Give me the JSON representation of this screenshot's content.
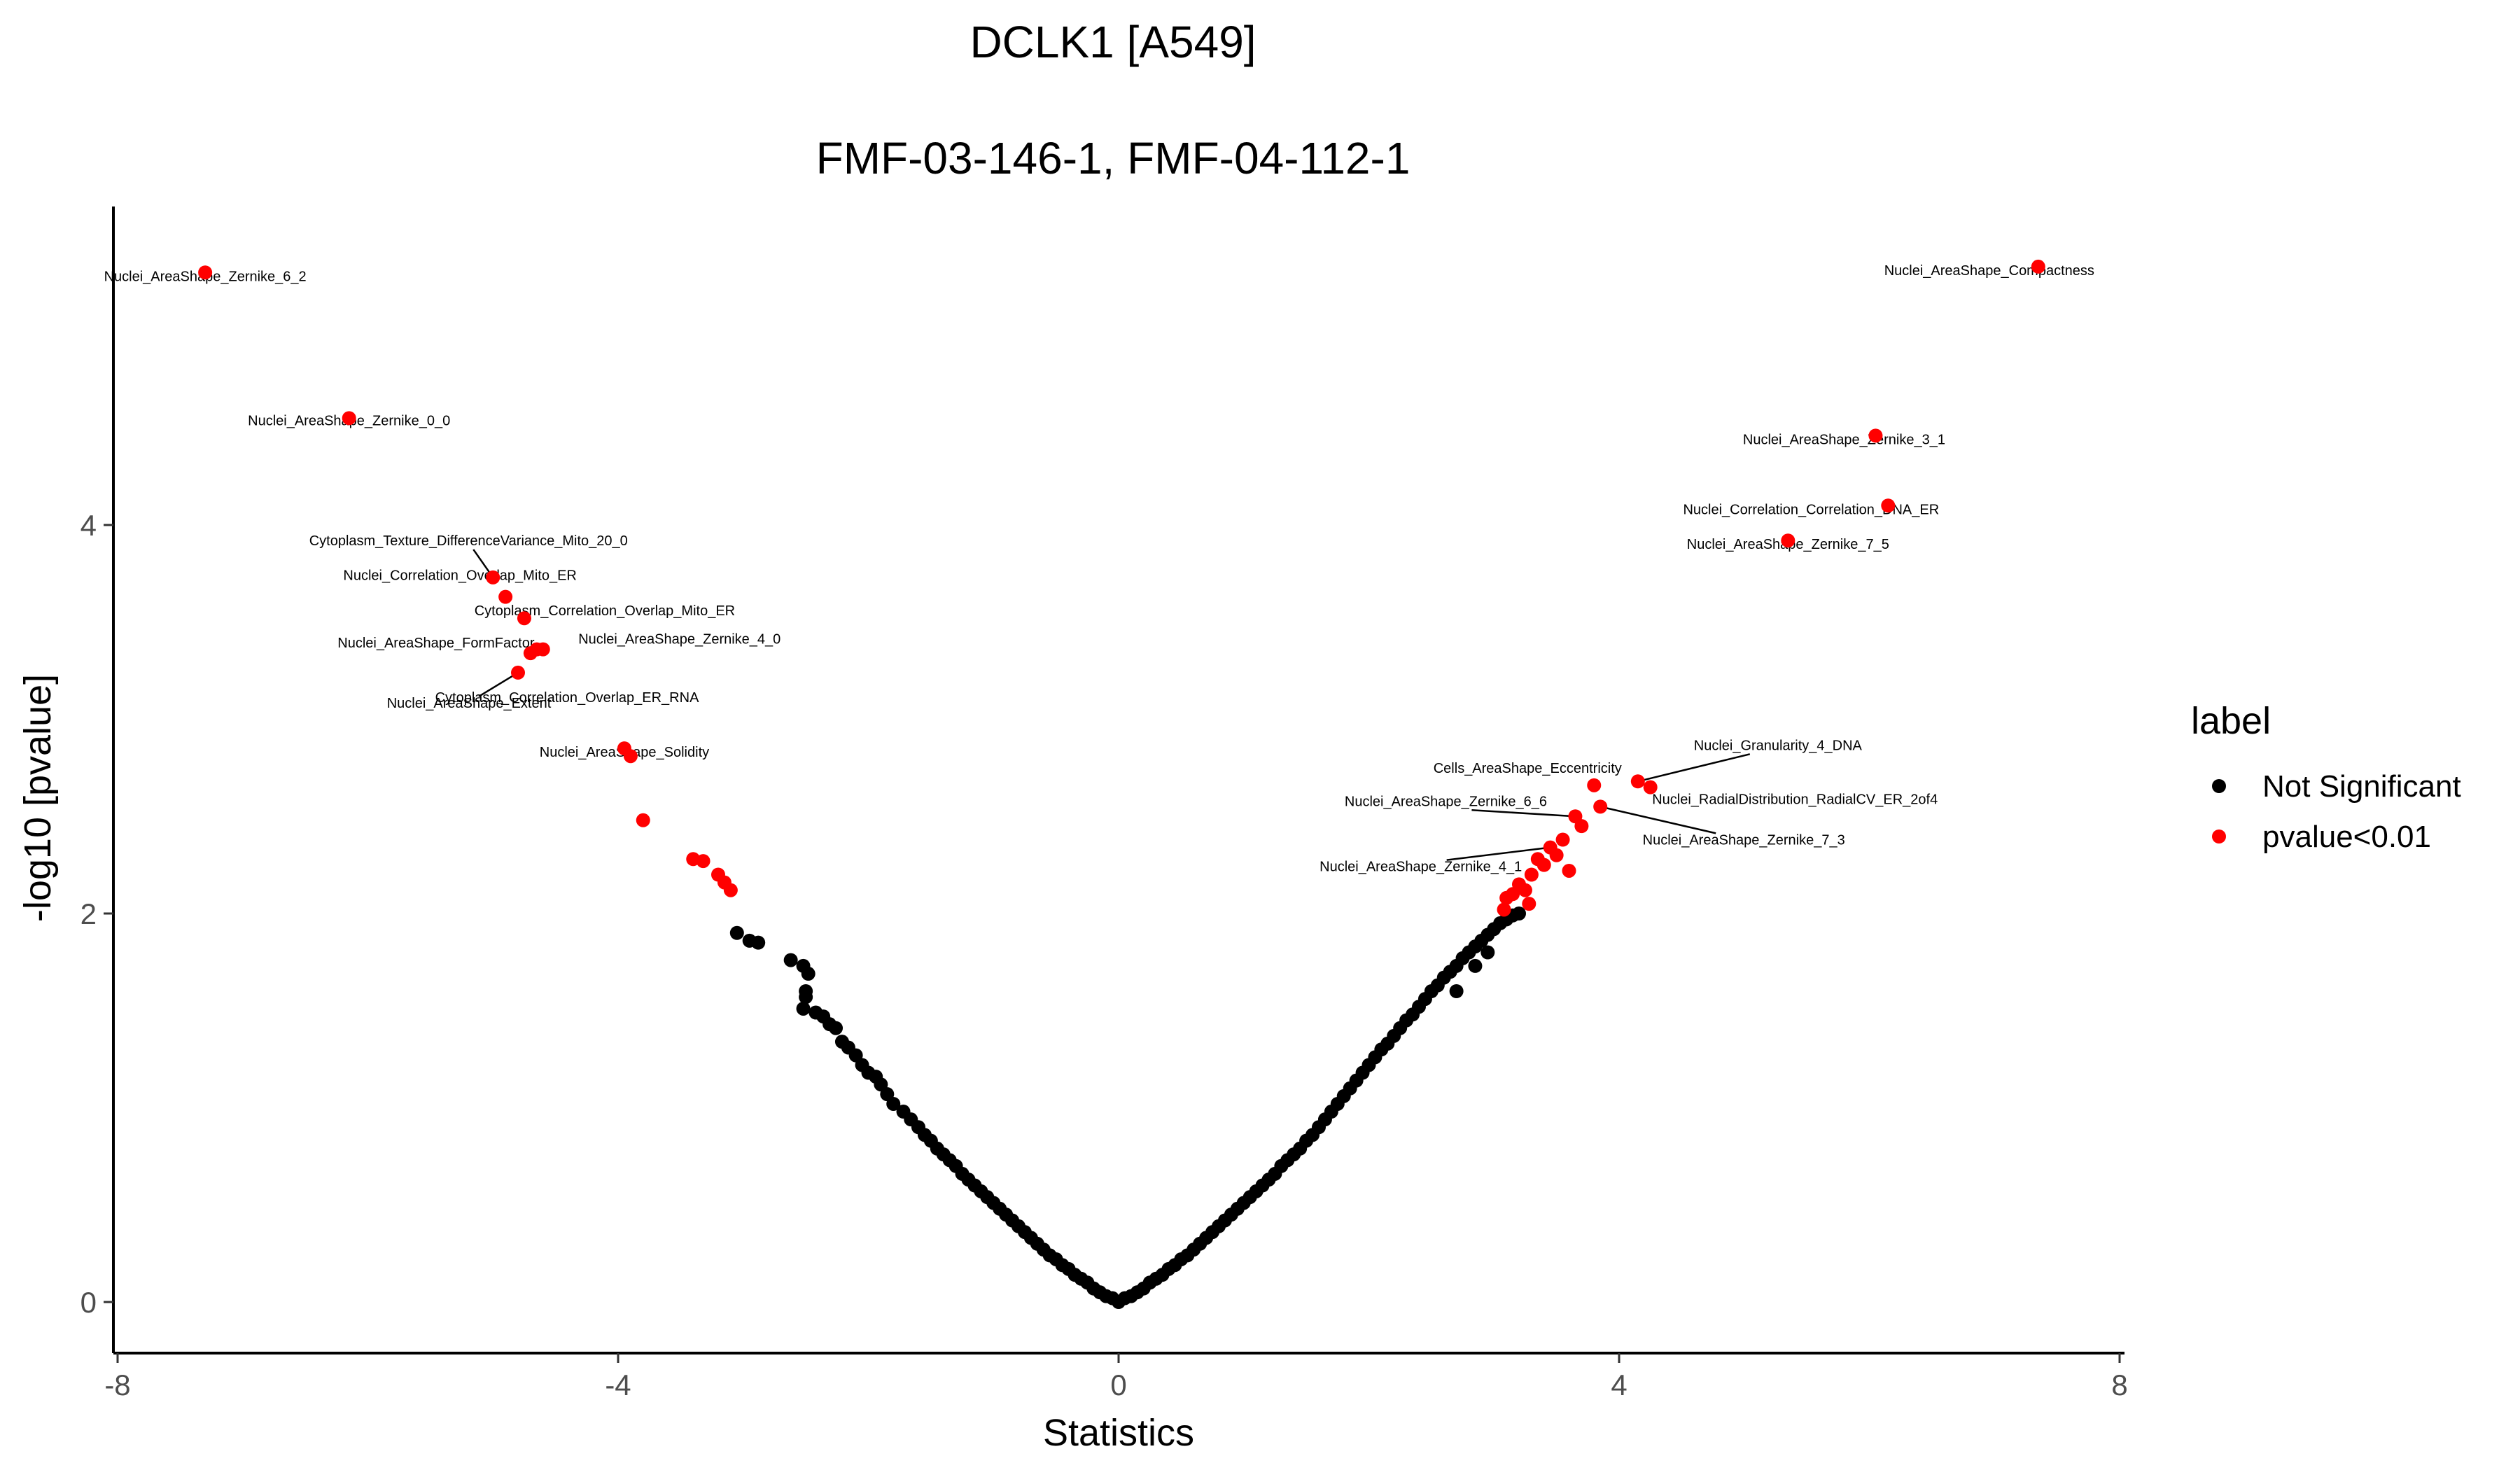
{
  "chart_data": {
    "type": "scatter",
    "title": "DCLK1 [A549]",
    "subtitle": "FMF-03-146-1, FMF-04-112-1",
    "xlabel": "Statistics",
    "ylabel": "-log10 [pvalue]",
    "xlim": [
      -8,
      8
    ],
    "ylim": [
      0,
      5.4
    ],
    "xticks": [
      -8,
      -4,
      0,
      4,
      8
    ],
    "yticks": [
      0,
      2,
      4
    ],
    "grid": false,
    "legend": {
      "title": "label",
      "placement": "right",
      "entries": [
        {
          "name": "Not Significant",
          "color": "#000000"
        },
        {
          "name": "pvalue<0.01",
          "color": "#ff0000"
        }
      ]
    },
    "series": [
      {
        "name": "Not Significant",
        "color": "#000000",
        "points": [
          [
            -3.05,
            1.9
          ],
          [
            -2.95,
            1.86
          ],
          [
            -2.88,
            1.85
          ],
          [
            -2.62,
            1.76
          ],
          [
            -2.52,
            1.73
          ],
          [
            -2.48,
            1.69
          ],
          [
            -2.5,
            1.6
          ],
          [
            -2.5,
            1.57
          ],
          [
            -2.52,
            1.51
          ],
          [
            -2.42,
            1.49
          ],
          [
            -2.36,
            1.47
          ],
          [
            -2.31,
            1.43
          ],
          [
            -2.26,
            1.41
          ],
          [
            -2.21,
            1.34
          ],
          [
            -2.16,
            1.31
          ],
          [
            -2.1,
            1.27
          ],
          [
            -2.05,
            1.22
          ],
          [
            -2.0,
            1.18
          ],
          [
            -1.94,
            1.16
          ],
          [
            -1.9,
            1.12
          ],
          [
            -1.85,
            1.07
          ],
          [
            -1.8,
            1.02
          ],
          [
            -1.72,
            0.98
          ],
          [
            -1.66,
            0.94
          ],
          [
            -1.6,
            0.9
          ],
          [
            -1.55,
            0.86
          ],
          [
            -1.5,
            0.83
          ],
          [
            -1.45,
            0.79
          ],
          [
            -1.4,
            0.76
          ],
          [
            -1.35,
            0.73
          ],
          [
            -1.3,
            0.7
          ],
          [
            -1.25,
            0.66
          ],
          [
            -1.2,
            0.63
          ],
          [
            -1.15,
            0.6
          ],
          [
            -1.1,
            0.57
          ],
          [
            -1.05,
            0.54
          ],
          [
            -1.0,
            0.51
          ],
          [
            -0.95,
            0.48
          ],
          [
            -0.9,
            0.45
          ],
          [
            -0.85,
            0.42
          ],
          [
            -0.8,
            0.39
          ],
          [
            -0.75,
            0.36
          ],
          [
            -0.7,
            0.33
          ],
          [
            -0.65,
            0.3
          ],
          [
            -0.6,
            0.27
          ],
          [
            -0.55,
            0.24
          ],
          [
            -0.5,
            0.22
          ],
          [
            -0.45,
            0.19
          ],
          [
            -0.4,
            0.17
          ],
          [
            -0.35,
            0.14
          ],
          [
            -0.3,
            0.12
          ],
          [
            -0.25,
            0.1
          ],
          [
            -0.2,
            0.07
          ],
          [
            -0.15,
            0.05
          ],
          [
            -0.1,
            0.03
          ],
          [
            -0.05,
            0.02
          ],
          [
            0.0,
            0.0
          ],
          [
            0.05,
            0.02
          ],
          [
            0.1,
            0.03
          ],
          [
            0.15,
            0.05
          ],
          [
            0.2,
            0.07
          ],
          [
            0.25,
            0.1
          ],
          [
            0.3,
            0.12
          ],
          [
            0.35,
            0.14
          ],
          [
            0.4,
            0.17
          ],
          [
            0.45,
            0.19
          ],
          [
            0.5,
            0.22
          ],
          [
            0.55,
            0.24
          ],
          [
            0.6,
            0.27
          ],
          [
            0.65,
            0.3
          ],
          [
            0.7,
            0.33
          ],
          [
            0.75,
            0.36
          ],
          [
            0.8,
            0.39
          ],
          [
            0.85,
            0.42
          ],
          [
            0.9,
            0.45
          ],
          [
            0.95,
            0.48
          ],
          [
            1.0,
            0.51
          ],
          [
            1.05,
            0.54
          ],
          [
            1.1,
            0.57
          ],
          [
            1.15,
            0.6
          ],
          [
            1.2,
            0.63
          ],
          [
            1.25,
            0.66
          ],
          [
            1.3,
            0.7
          ],
          [
            1.35,
            0.73
          ],
          [
            1.4,
            0.76
          ],
          [
            1.45,
            0.79
          ],
          [
            1.5,
            0.83
          ],
          [
            1.55,
            0.86
          ],
          [
            1.6,
            0.9
          ],
          [
            1.65,
            0.94
          ],
          [
            1.7,
            0.98
          ],
          [
            1.75,
            1.02
          ],
          [
            1.8,
            1.06
          ],
          [
            1.85,
            1.1
          ],
          [
            1.9,
            1.14
          ],
          [
            1.95,
            1.18
          ],
          [
            2.0,
            1.22
          ],
          [
            2.05,
            1.26
          ],
          [
            2.1,
            1.3
          ],
          [
            2.15,
            1.33
          ],
          [
            2.2,
            1.37
          ],
          [
            2.25,
            1.41
          ],
          [
            2.3,
            1.45
          ],
          [
            2.35,
            1.48
          ],
          [
            2.4,
            1.52
          ],
          [
            2.45,
            1.56
          ],
          [
            2.5,
            1.6
          ],
          [
            2.55,
            1.63
          ],
          [
            2.6,
            1.67
          ],
          [
            2.65,
            1.7
          ],
          [
            2.7,
            1.73
          ],
          [
            2.75,
            1.77
          ],
          [
            2.8,
            1.8
          ],
          [
            2.85,
            1.83
          ],
          [
            2.9,
            1.86
          ],
          [
            2.95,
            1.89
          ],
          [
            3.0,
            1.92
          ],
          [
            3.05,
            1.95
          ],
          [
            3.1,
            1.97
          ],
          [
            3.15,
            1.99
          ],
          [
            3.2,
            2.0
          ],
          [
            2.7,
            1.6
          ],
          [
            2.85,
            1.73
          ],
          [
            2.95,
            1.8
          ]
        ]
      },
      {
        "name": "pvalue<0.01",
        "color": "#ff0000",
        "points": [
          [
            -7.3,
            5.3
          ],
          [
            -6.15,
            4.55
          ],
          [
            -5.0,
            3.73
          ],
          [
            -4.9,
            3.63
          ],
          [
            -4.75,
            3.52
          ],
          [
            -4.65,
            3.36
          ],
          [
            -4.7,
            3.34
          ],
          [
            -4.6,
            3.36
          ],
          [
            -4.8,
            3.24
          ],
          [
            -3.95,
            2.85
          ],
          [
            -3.9,
            2.81
          ],
          [
            -3.8,
            2.48
          ],
          [
            -3.4,
            2.28
          ],
          [
            -3.32,
            2.27
          ],
          [
            -3.2,
            2.2
          ],
          [
            -3.15,
            2.16
          ],
          [
            -3.1,
            2.12
          ],
          [
            7.35,
            5.33
          ],
          [
            6.05,
            4.46
          ],
          [
            6.15,
            4.1
          ],
          [
            5.35,
            3.92
          ],
          [
            4.15,
            2.68
          ],
          [
            4.25,
            2.65
          ],
          [
            3.8,
            2.66
          ],
          [
            3.85,
            2.55
          ],
          [
            3.65,
            2.5
          ],
          [
            3.7,
            2.45
          ],
          [
            3.6,
            2.22
          ],
          [
            3.55,
            2.38
          ],
          [
            3.5,
            2.3
          ],
          [
            3.45,
            2.34
          ],
          [
            3.4,
            2.25
          ],
          [
            3.35,
            2.28
          ],
          [
            3.3,
            2.2
          ],
          [
            3.25,
            2.12
          ],
          [
            3.2,
            2.15
          ],
          [
            3.1,
            2.08
          ],
          [
            3.08,
            2.02
          ],
          [
            3.28,
            2.05
          ],
          [
            3.15,
            2.1
          ]
        ]
      }
    ],
    "annotations": [
      {
        "text": "Nuclei_AreaShape_Zernike_6_2",
        "x": -7.3,
        "y": 5.3
      },
      {
        "text": "Nuclei_AreaShape_Zernike_0_0",
        "x": -6.15,
        "y": 4.55
      },
      {
        "text": "Cytoplasm_Texture_DifferenceVariance_Mito_20_0",
        "x": -5.0,
        "y": 3.73
      },
      {
        "text": "Nuclei_Correlation_Overlap_Mito_ER",
        "x": -4.9,
        "y": 3.63
      },
      {
        "text": "Cytoplasm_Correlation_Overlap_Mito_ER",
        "x": -4.75,
        "y": 3.52
      },
      {
        "text": "Nuclei_AreaShape_FormFactor",
        "x": -4.7,
        "y": 3.34
      },
      {
        "text": "Nuclei_AreaShape_Zernike_4_0",
        "x": -4.6,
        "y": 3.36
      },
      {
        "text": "Cytoplasm_Correlation_Overlap_ER_RNA",
        "x": -4.8,
        "y": 3.24
      },
      {
        "text": "Nuclei_AreaShape_Extent",
        "x": -4.8,
        "y": 3.24
      },
      {
        "text": "Nuclei_AreaShape_Solidity",
        "x": -3.95,
        "y": 2.85
      },
      {
        "text": "Nuclei_AreaShape_Compactness",
        "x": 7.35,
        "y": 5.33
      },
      {
        "text": "Nuclei_AreaShape_Zernike_3_1",
        "x": 6.05,
        "y": 4.46
      },
      {
        "text": "Nuclei_Correlation_Correlation_DNA_ER",
        "x": 6.15,
        "y": 4.1
      },
      {
        "text": "Nuclei_AreaShape_Zernike_7_5",
        "x": 5.35,
        "y": 3.92
      },
      {
        "text": "Nuclei_Granularity_4_DNA",
        "x": 4.15,
        "y": 2.68
      },
      {
        "text": "Cells_AreaShape_Eccentricity",
        "x": 3.8,
        "y": 2.66
      },
      {
        "text": "Nuclei_AreaShape_Zernike_6_6",
        "x": 3.65,
        "y": 2.5
      },
      {
        "text": "Nuclei_RadialDistribution_RadialCV_ER_2of4",
        "x": 3.85,
        "y": 2.55
      },
      {
        "text": "Nuclei_AreaShape_Zernike_7_3",
        "x": 3.85,
        "y": 2.55
      },
      {
        "text": "Nuclei_AreaShape_Zernike_4_1",
        "x": 3.45,
        "y": 2.34
      }
    ]
  }
}
